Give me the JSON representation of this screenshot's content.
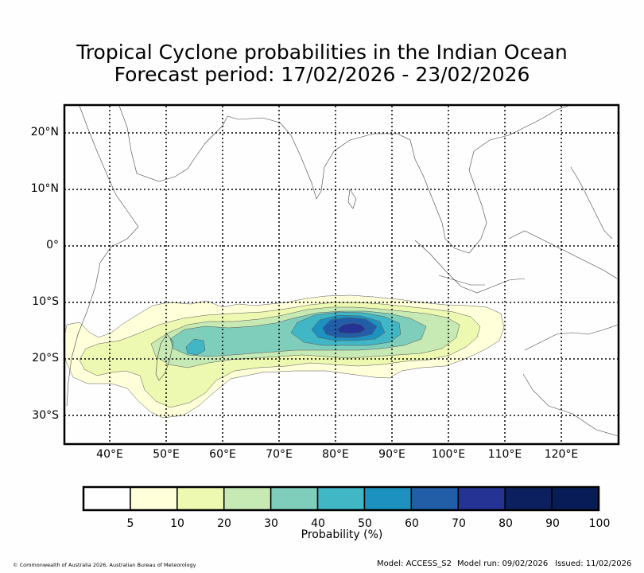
{
  "title": {
    "line1": "Tropical Cyclone probabilities in the Indian Ocean",
    "line2": "Forecast period: 17/02/2026 - 23/02/2026"
  },
  "map": {
    "lat_labels": [
      "20°N",
      "10°N",
      "0°",
      "10°S",
      "20°S",
      "30°S"
    ],
    "lon_labels": [
      "40°E",
      "50°E",
      "60°E",
      "70°E",
      "80°E",
      "90°E",
      "100°E",
      "110°E",
      "120°E"
    ]
  },
  "colorbar": {
    "label": "Probability (%)",
    "ticks": [
      "5",
      "10",
      "20",
      "30",
      "40",
      "50",
      "60",
      "70",
      "80",
      "90",
      "100"
    ],
    "colors": [
      "#ffffff",
      "#ffffd9",
      "#edf8b1",
      "#c7e9b4",
      "#7fcdbb",
      "#41b6c4",
      "#1d91c0",
      "#225ea8",
      "#253494",
      "#0c1f5e",
      "#081d58"
    ]
  },
  "footer": {
    "copyright": "© Commonwealth of Australia 2026, Australian Bureau of Meteorology",
    "model": "Model: ACCESS_S2",
    "model_run": "Model run: 09/02/2026",
    "issued": "Issued: 11/02/2026"
  }
}
